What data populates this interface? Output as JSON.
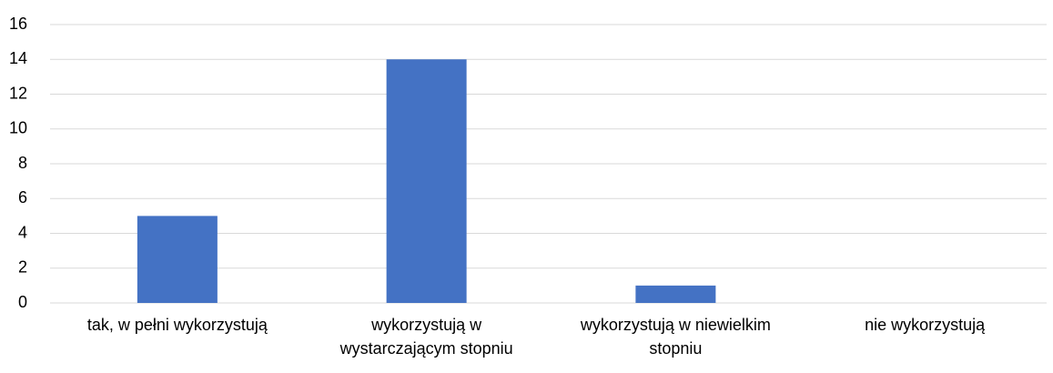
{
  "chart_data": {
    "type": "bar",
    "categories": [
      "tak, w pełni wykorzystują",
      "wykorzystują w wystarczającym stopniu",
      "wykorzystują w niewielkim stopniu",
      "nie wykorzystują"
    ],
    "values": [
      5,
      14,
      1,
      0
    ],
    "color": "#4472c4",
    "ylim": [
      0,
      16
    ],
    "yticks": [
      0,
      2,
      4,
      6,
      8,
      10,
      12,
      14,
      16
    ],
    "grid": true
  }
}
